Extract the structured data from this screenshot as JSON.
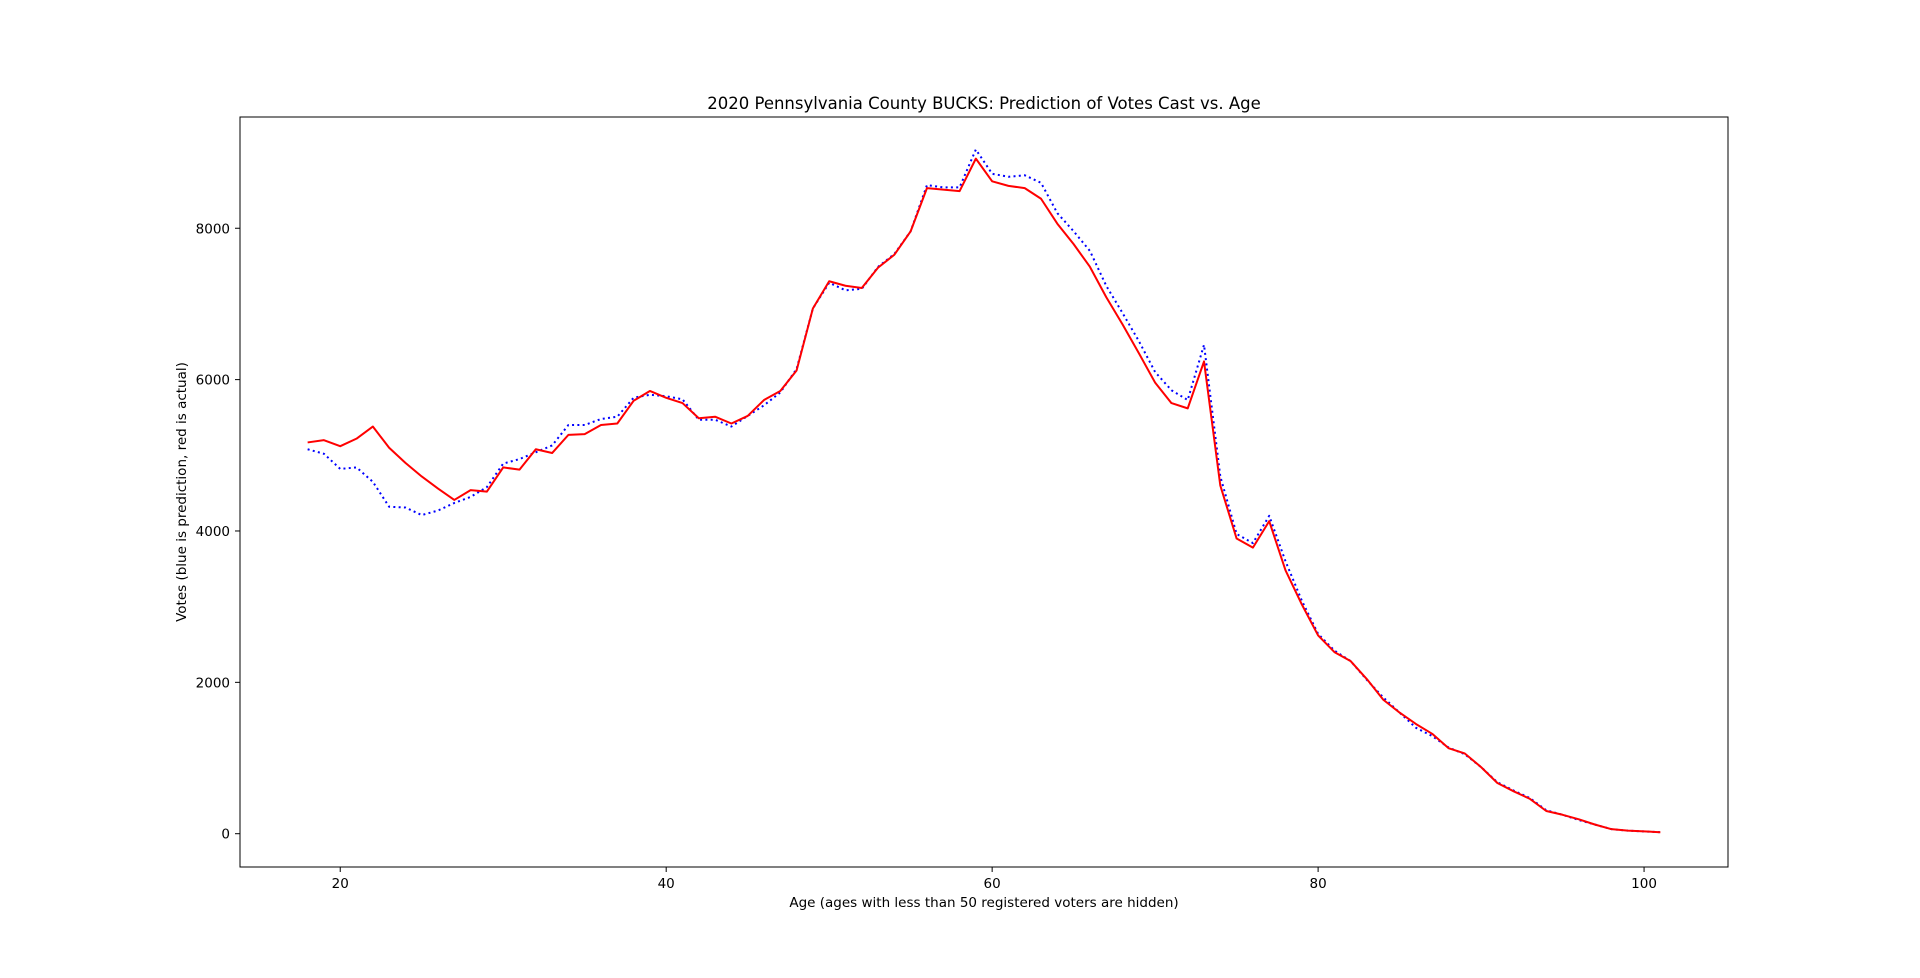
{
  "chart_data": {
    "type": "line",
    "title": "2020 Pennsylvania County BUCKS: Prediction of Votes Cast vs. Age",
    "xlabel": "Age (ages with less than 50 registered voters are hidden)",
    "ylabel": "Votes (blue is prediction, red is actual)",
    "xlim": [
      13.85,
      105.15
    ],
    "ylim": [
      -440,
      9470
    ],
    "xticks": [
      20,
      40,
      60,
      80,
      100
    ],
    "yticks": [
      0,
      2000,
      4000,
      6000,
      8000
    ],
    "grid": false,
    "x": [
      18,
      19,
      20,
      21,
      22,
      23,
      24,
      25,
      26,
      27,
      28,
      29,
      30,
      31,
      32,
      33,
      34,
      35,
      36,
      37,
      38,
      39,
      40,
      41,
      42,
      43,
      44,
      45,
      46,
      47,
      48,
      49,
      50,
      51,
      52,
      53,
      54,
      55,
      56,
      57,
      58,
      59,
      60,
      61,
      62,
      63,
      64,
      65,
      66,
      67,
      68,
      69,
      70,
      71,
      72,
      73,
      74,
      75,
      76,
      77,
      78,
      79,
      80,
      81,
      82,
      83,
      84,
      85,
      86,
      87,
      88,
      89,
      90,
      91,
      92,
      93,
      94,
      95,
      96,
      97,
      98,
      99,
      100,
      101
    ],
    "series": [
      {
        "name": "prediction",
        "color": "#0000ff",
        "style": "dotted",
        "values": [
          5080,
          5020,
          4820,
          4840,
          4650,
          4320,
          4310,
          4210,
          4270,
          4370,
          4450,
          4580,
          4890,
          4950,
          5040,
          5130,
          5400,
          5400,
          5480,
          5510,
          5760,
          5800,
          5780,
          5740,
          5470,
          5470,
          5380,
          5520,
          5660,
          5830,
          6140,
          6940,
          7280,
          7180,
          7200,
          7490,
          7660,
          7960,
          8570,
          8540,
          8540,
          9040,
          8720,
          8680,
          8700,
          8600,
          8200,
          7960,
          7700,
          7240,
          6880,
          6510,
          6100,
          5860,
          5730,
          6460,
          4720,
          3960,
          3840,
          4200,
          3600,
          3080,
          2640,
          2420,
          2280,
          2030,
          1800,
          1600,
          1400,
          1290,
          1140,
          1050,
          880,
          680,
          570,
          470,
          310,
          250,
          180,
          120,
          60,
          40,
          30,
          20
        ]
      },
      {
        "name": "actual",
        "color": "#ff0000",
        "style": "solid",
        "values": [
          5170,
          5200,
          5120,
          5220,
          5380,
          5100,
          4900,
          4720,
          4560,
          4410,
          4540,
          4520,
          4840,
          4810,
          5080,
          5030,
          5270,
          5280,
          5400,
          5420,
          5720,
          5850,
          5760,
          5690,
          5490,
          5510,
          5420,
          5520,
          5730,
          5850,
          6120,
          6940,
          7300,
          7240,
          7210,
          7480,
          7650,
          7960,
          8530,
          8510,
          8490,
          8920,
          8620,
          8560,
          8530,
          8390,
          8060,
          7790,
          7490,
          7090,
          6730,
          6350,
          5960,
          5690,
          5620,
          6240,
          4600,
          3900,
          3780,
          4130,
          3480,
          3030,
          2620,
          2400,
          2280,
          2040,
          1770,
          1600,
          1450,
          1320,
          1130,
          1060,
          880,
          670,
          560,
          460,
          300,
          250,
          190,
          120,
          60,
          40,
          30,
          20
        ]
      }
    ]
  }
}
